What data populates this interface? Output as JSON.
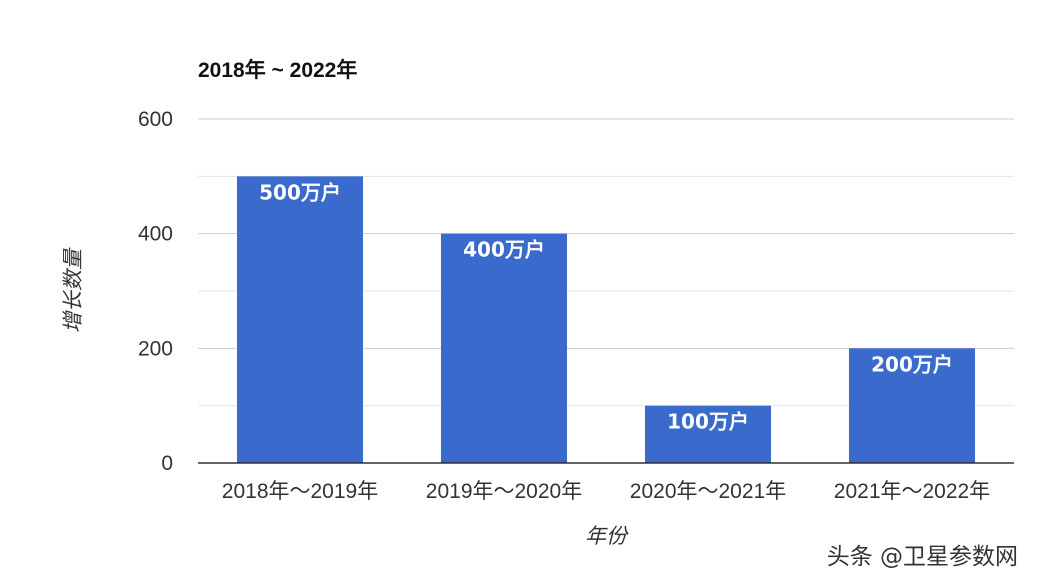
{
  "watermark": "头条 @卫星参数网",
  "chart_data": {
    "type": "bar",
    "title": "2018年 ~ 2022年",
    "xlabel": "年份",
    "ylabel": "增长数量",
    "categories": [
      "2018年～2019年",
      "2019年～2020年",
      "2020年～2021年",
      "2021年～2022年"
    ],
    "values": [
      500,
      400,
      100,
      200
    ],
    "data_labels": [
      "500万户",
      "400万户",
      "100万户",
      "200万户"
    ],
    "ylim": [
      0,
      600
    ],
    "yticks": [
      0,
      200,
      400,
      600
    ],
    "grid": true,
    "bar_color": "#3a6bcc",
    "grid_color": "#cccccc"
  }
}
